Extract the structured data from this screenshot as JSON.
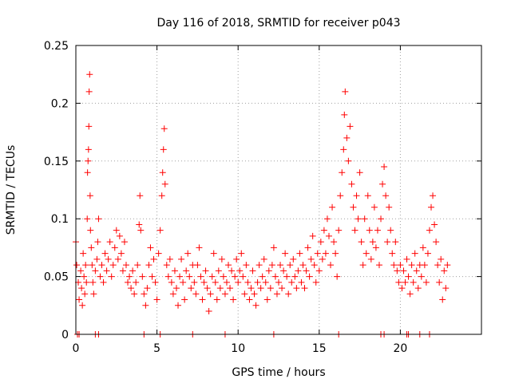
{
  "chart_data": {
    "type": "scatter",
    "title": "Day 116 of 2018, SRMTID for receiver p043",
    "xlabel": "GPS time / hours",
    "ylabel": "SRMTID / TECUs",
    "xlim": [
      0,
      25
    ],
    "ylim": [
      0,
      0.25
    ],
    "xticks": [
      0,
      5,
      10,
      15,
      20
    ],
    "xtick_labels": [
      "0",
      "5",
      "10",
      "15",
      "20"
    ],
    "yticks": [
      0,
      0.05,
      0.1,
      0.15,
      0.2,
      0.25
    ],
    "ytick_labels": [
      "0",
      "0.05",
      "0.1",
      "0.15",
      "0.2",
      "0.25"
    ],
    "grid": true,
    "marker": "+",
    "color": "#ff0000",
    "series": [
      {
        "name": "SRMTID",
        "points": [
          [
            0.0,
            0.08
          ],
          [
            0.05,
            0.06
          ],
          [
            0.15,
            0.045
          ],
          [
            0.2,
            0.03
          ],
          [
            0.3,
            0.055
          ],
          [
            0.35,
            0.04
          ],
          [
            0.4,
            0.025
          ],
          [
            0.45,
            0.07
          ],
          [
            0.5,
            0.05
          ],
          [
            0.55,
            0.035
          ],
          [
            0.6,
            0.06
          ],
          [
            0.65,
            0.045
          ],
          [
            0.7,
            0.1
          ],
          [
            0.72,
            0.14
          ],
          [
            0.75,
            0.15
          ],
          [
            0.78,
            0.16
          ],
          [
            0.8,
            0.18
          ],
          [
            0.82,
            0.21
          ],
          [
            0.85,
            0.225
          ],
          [
            0.88,
            0.12
          ],
          [
            0.9,
            0.09
          ],
          [
            0.95,
            0.075
          ],
          [
            1.0,
            0.06
          ],
          [
            1.05,
            0.045
          ],
          [
            1.1,
            0.035
          ],
          [
            1.2,
            0.055
          ],
          [
            1.3,
            0.065
          ],
          [
            1.35,
            0.08
          ],
          [
            1.4,
            0.1
          ],
          [
            1.5,
            0.05
          ],
          [
            1.6,
            0.06
          ],
          [
            1.7,
            0.045
          ],
          [
            1.8,
            0.07
          ],
          [
            1.9,
            0.055
          ],
          [
            2.0,
            0.065
          ],
          [
            2.1,
            0.08
          ],
          [
            2.2,
            0.05
          ],
          [
            2.3,
            0.06
          ],
          [
            2.4,
            0.075
          ],
          [
            2.5,
            0.09
          ],
          [
            2.6,
            0.065
          ],
          [
            2.7,
            0.085
          ],
          [
            2.8,
            0.07
          ],
          [
            2.9,
            0.055
          ],
          [
            3.0,
            0.08
          ],
          [
            3.1,
            0.06
          ],
          [
            3.2,
            0.045
          ],
          [
            3.3,
            0.05
          ],
          [
            3.4,
            0.04
          ],
          [
            3.5,
            0.055
          ],
          [
            3.6,
            0.035
          ],
          [
            3.7,
            0.045
          ],
          [
            3.8,
            0.06
          ],
          [
            3.9,
            0.095
          ],
          [
            3.95,
            0.12
          ],
          [
            4.0,
            0.09
          ],
          [
            4.1,
            0.05
          ],
          [
            4.2,
            0.035
          ],
          [
            4.3,
            0.025
          ],
          [
            4.4,
            0.04
          ],
          [
            4.5,
            0.06
          ],
          [
            4.6,
            0.075
          ],
          [
            4.7,
            0.05
          ],
          [
            4.8,
            0.065
          ],
          [
            4.9,
            0.045
          ],
          [
            5.0,
            0.03
          ],
          [
            5.1,
            0.07
          ],
          [
            5.2,
            0.09
          ],
          [
            5.3,
            0.12
          ],
          [
            5.35,
            0.14
          ],
          [
            5.4,
            0.16
          ],
          [
            5.45,
            0.178
          ],
          [
            5.5,
            0.13
          ],
          [
            5.6,
            0.06
          ],
          [
            5.7,
            0.05
          ],
          [
            5.8,
            0.065
          ],
          [
            5.9,
            0.045
          ],
          [
            6.0,
            0.035
          ],
          [
            6.1,
            0.055
          ],
          [
            6.2,
            0.04
          ],
          [
            6.3,
            0.025
          ],
          [
            6.4,
            0.05
          ],
          [
            6.5,
            0.065
          ],
          [
            6.6,
            0.045
          ],
          [
            6.7,
            0.03
          ],
          [
            6.8,
            0.055
          ],
          [
            6.9,
            0.07
          ],
          [
            7.0,
            0.05
          ],
          [
            7.1,
            0.04
          ],
          [
            7.2,
            0.06
          ],
          [
            7.3,
            0.045
          ],
          [
            7.4,
            0.035
          ],
          [
            7.5,
            0.06
          ],
          [
            7.6,
            0.075
          ],
          [
            7.7,
            0.05
          ],
          [
            7.8,
            0.03
          ],
          [
            7.9,
            0.045
          ],
          [
            8.0,
            0.055
          ],
          [
            8.1,
            0.04
          ],
          [
            8.2,
            0.02
          ],
          [
            8.3,
            0.035
          ],
          [
            8.4,
            0.05
          ],
          [
            8.5,
            0.07
          ],
          [
            8.6,
            0.045
          ],
          [
            8.7,
            0.03
          ],
          [
            8.8,
            0.055
          ],
          [
            8.9,
            0.04
          ],
          [
            9.0,
            0.065
          ],
          [
            9.1,
            0.05
          ],
          [
            9.2,
            0.035
          ],
          [
            9.3,
            0.045
          ],
          [
            9.4,
            0.06
          ],
          [
            9.5,
            0.04
          ],
          [
            9.6,
            0.055
          ],
          [
            9.7,
            0.03
          ],
          [
            9.8,
            0.05
          ],
          [
            9.9,
            0.065
          ],
          [
            10.0,
            0.045
          ],
          [
            10.1,
            0.055
          ],
          [
            10.2,
            0.07
          ],
          [
            10.3,
            0.05
          ],
          [
            10.4,
            0.035
          ],
          [
            10.5,
            0.06
          ],
          [
            10.6,
            0.045
          ],
          [
            10.7,
            0.03
          ],
          [
            10.8,
            0.04
          ],
          [
            10.9,
            0.055
          ],
          [
            11.0,
            0.035
          ],
          [
            11.1,
            0.025
          ],
          [
            11.2,
            0.045
          ],
          [
            11.3,
            0.06
          ],
          [
            11.4,
            0.04
          ],
          [
            11.5,
            0.05
          ],
          [
            11.6,
            0.065
          ],
          [
            11.7,
            0.045
          ],
          [
            11.8,
            0.03
          ],
          [
            11.9,
            0.055
          ],
          [
            12.0,
            0.04
          ],
          [
            12.1,
            0.06
          ],
          [
            12.2,
            0.075
          ],
          [
            12.3,
            0.05
          ],
          [
            12.4,
            0.035
          ],
          [
            12.5,
            0.045
          ],
          [
            12.6,
            0.06
          ],
          [
            12.7,
            0.04
          ],
          [
            12.8,
            0.055
          ],
          [
            12.9,
            0.07
          ],
          [
            13.0,
            0.05
          ],
          [
            13.1,
            0.035
          ],
          [
            13.2,
            0.06
          ],
          [
            13.3,
            0.045
          ],
          [
            13.4,
            0.065
          ],
          [
            13.5,
            0.05
          ],
          [
            13.6,
            0.04
          ],
          [
            13.7,
            0.055
          ],
          [
            13.8,
            0.07
          ],
          [
            13.9,
            0.045
          ],
          [
            14.0,
            0.06
          ],
          [
            14.1,
            0.04
          ],
          [
            14.2,
            0.055
          ],
          [
            14.3,
            0.075
          ],
          [
            14.4,
            0.05
          ],
          [
            14.5,
            0.065
          ],
          [
            14.6,
            0.085
          ],
          [
            14.7,
            0.06
          ],
          [
            14.8,
            0.045
          ],
          [
            14.9,
            0.07
          ],
          [
            15.0,
            0.055
          ],
          [
            15.1,
            0.08
          ],
          [
            15.2,
            0.065
          ],
          [
            15.3,
            0.09
          ],
          [
            15.4,
            0.07
          ],
          [
            15.5,
            0.1
          ],
          [
            15.6,
            0.085
          ],
          [
            15.7,
            0.06
          ],
          [
            15.8,
            0.11
          ],
          [
            15.9,
            0.08
          ],
          [
            16.0,
            0.07
          ],
          [
            16.1,
            0.05
          ],
          [
            16.2,
            0.09
          ],
          [
            16.3,
            0.12
          ],
          [
            16.4,
            0.14
          ],
          [
            16.5,
            0.16
          ],
          [
            16.55,
            0.19
          ],
          [
            16.6,
            0.21
          ],
          [
            16.7,
            0.17
          ],
          [
            16.8,
            0.15
          ],
          [
            16.9,
            0.18
          ],
          [
            17.0,
            0.13
          ],
          [
            17.1,
            0.11
          ],
          [
            17.2,
            0.09
          ],
          [
            17.3,
            0.12
          ],
          [
            17.4,
            0.1
          ],
          [
            17.5,
            0.14
          ],
          [
            17.6,
            0.08
          ],
          [
            17.7,
            0.06
          ],
          [
            17.8,
            0.1
          ],
          [
            17.9,
            0.07
          ],
          [
            18.0,
            0.12
          ],
          [
            18.1,
            0.09
          ],
          [
            18.2,
            0.065
          ],
          [
            18.3,
            0.08
          ],
          [
            18.4,
            0.11
          ],
          [
            18.5,
            0.075
          ],
          [
            18.6,
            0.09
          ],
          [
            18.7,
            0.06
          ],
          [
            18.8,
            0.1
          ],
          [
            18.9,
            0.13
          ],
          [
            19.0,
            0.145
          ],
          [
            19.1,
            0.12
          ],
          [
            19.2,
            0.08
          ],
          [
            19.3,
            0.11
          ],
          [
            19.4,
            0.09
          ],
          [
            19.5,
            0.07
          ],
          [
            19.6,
            0.06
          ],
          [
            19.7,
            0.08
          ],
          [
            19.8,
            0.055
          ],
          [
            19.9,
            0.045
          ],
          [
            20.0,
            0.06
          ],
          [
            20.1,
            0.04
          ],
          [
            20.2,
            0.055
          ],
          [
            20.3,
            0.045
          ],
          [
            20.4,
            0.065
          ],
          [
            20.5,
            0.05
          ],
          [
            20.6,
            0.035
          ],
          [
            20.7,
            0.06
          ],
          [
            20.8,
            0.045
          ],
          [
            20.9,
            0.07
          ],
          [
            21.0,
            0.055
          ],
          [
            21.1,
            0.04
          ],
          [
            21.2,
            0.06
          ],
          [
            21.3,
            0.05
          ],
          [
            21.4,
            0.075
          ],
          [
            21.5,
            0.06
          ],
          [
            21.6,
            0.045
          ],
          [
            21.7,
            0.07
          ],
          [
            21.8,
            0.09
          ],
          [
            21.9,
            0.11
          ],
          [
            22.0,
            0.12
          ],
          [
            22.1,
            0.095
          ],
          [
            22.2,
            0.08
          ],
          [
            22.3,
            0.06
          ],
          [
            22.4,
            0.045
          ],
          [
            22.5,
            0.065
          ],
          [
            22.6,
            0.03
          ],
          [
            22.7,
            0.055
          ],
          [
            22.8,
            0.04
          ],
          [
            22.9,
            0.06
          ],
          [
            0.1,
            0.0
          ],
          [
            0.2,
            0.0
          ],
          [
            1.2,
            0.0
          ],
          [
            1.4,
            0.0
          ],
          [
            4.2,
            0.0
          ],
          [
            5.2,
            0.0
          ],
          [
            7.2,
            0.0
          ],
          [
            9.2,
            0.0
          ],
          [
            12.2,
            0.0
          ],
          [
            16.2,
            0.0
          ],
          [
            18.8,
            0.0
          ],
          [
            19.0,
            0.0
          ],
          [
            20.4,
            0.0
          ],
          [
            20.5,
            0.0
          ],
          [
            21.2,
            0.0
          ],
          [
            21.8,
            0.0
          ]
        ]
      }
    ]
  }
}
